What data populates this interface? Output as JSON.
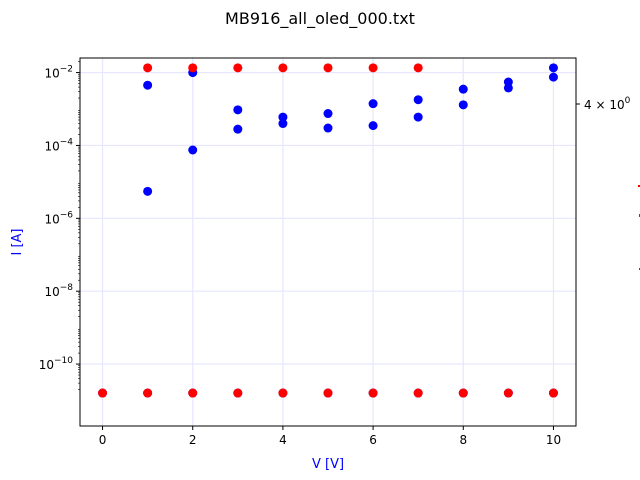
{
  "chart_data": {
    "type": "scatter",
    "title": "MB916_all_oled_000.txt",
    "xlabel": "V [V]",
    "ylabel": "I [A]",
    "y2label": "",
    "xlim": [
      -0.5,
      10.5
    ],
    "ylog": true,
    "ylim_exp": [
      -11.7,
      -1.6
    ],
    "grid": true,
    "x_ticks": [
      0,
      2,
      4,
      6,
      8,
      10
    ],
    "y_ticks": [
      {
        "exp": -2,
        "label": "10",
        "sup": "−2"
      },
      {
        "exp": -4,
        "label": "10",
        "sup": "−4"
      },
      {
        "exp": -6,
        "label": "10",
        "sup": "−6"
      },
      {
        "exp": -8,
        "label": "10",
        "sup": "−8"
      },
      {
        "exp": -10,
        "label": "10",
        "sup": "−10"
      }
    ],
    "y2_ticks": [
      {
        "label": "4 × 10",
        "sup": "0"
      }
    ],
    "colors": {
      "current": "#0000ff",
      "right_axis": "#ff0000",
      "grid": "#e6e6ff"
    },
    "series": [
      {
        "color": "#0000ff",
        "points": [
          [
            0,
            1.6e-11
          ],
          [
            1,
            1.6e-11
          ],
          [
            1,
            5.5e-06
          ],
          [
            1,
            0.0045
          ],
          [
            2,
            1.6e-11
          ],
          [
            2,
            7.5e-05
          ],
          [
            2,
            0.01
          ],
          [
            3,
            1.6e-11
          ],
          [
            3,
            0.00028
          ],
          [
            3,
            0.00095
          ],
          [
            4,
            1.6e-11
          ],
          [
            4,
            0.0004
          ],
          [
            4,
            0.0006
          ],
          [
            5,
            1.6e-11
          ],
          [
            5,
            0.0003
          ],
          [
            5,
            0.00075
          ],
          [
            6,
            1.6e-11
          ],
          [
            6,
            0.00035
          ],
          [
            6,
            0.0014
          ],
          [
            7,
            1.6e-11
          ],
          [
            7,
            0.0006
          ],
          [
            7,
            0.0018
          ],
          [
            8,
            1.6e-11
          ],
          [
            8,
            0.0013
          ],
          [
            8,
            0.0035
          ],
          [
            9,
            1.6e-11
          ],
          [
            9,
            0.0038
          ],
          [
            9,
            0.0055
          ],
          [
            10,
            1.6e-11
          ],
          [
            10,
            0.0075
          ],
          [
            10,
            0.0135
          ]
        ]
      },
      {
        "color": "#ff0000",
        "points": [
          [
            0,
            1.6e-11
          ],
          [
            1,
            1.6e-11
          ],
          [
            2,
            1.6e-11
          ],
          [
            3,
            1.6e-11
          ],
          [
            4,
            1.6e-11
          ],
          [
            5,
            1.6e-11
          ],
          [
            6,
            1.6e-11
          ],
          [
            7,
            1.6e-11
          ],
          [
            8,
            1.6e-11
          ],
          [
            9,
            1.6e-11
          ],
          [
            10,
            1.6e-11
          ],
          [
            1,
            0.0135
          ],
          [
            2,
            0.0135
          ],
          [
            3,
            0.0135
          ],
          [
            4,
            0.0135
          ],
          [
            5,
            0.0135
          ],
          [
            6,
            0.0135
          ],
          [
            7,
            0.0135
          ]
        ]
      }
    ]
  }
}
